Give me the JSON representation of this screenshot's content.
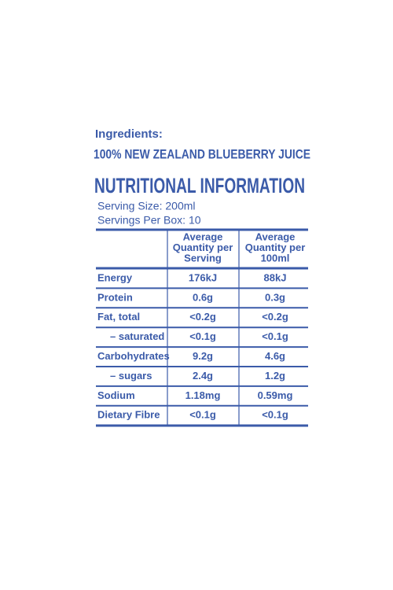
{
  "ingredients": {
    "label": "Ingredients:",
    "text": "100% NEW ZEALAND BLUEBERRY JUICE"
  },
  "nutrition": {
    "title": "NUTRITIONAL INFORMATION",
    "serving_size": "Serving Size: 200ml",
    "servings_per_box": "Servings Per Box: 10",
    "columns": [
      [
        "Average",
        "Quantity per",
        "Serving"
      ],
      [
        "Average",
        "Quantity per",
        "100ml"
      ]
    ],
    "rows": [
      [
        "Energy",
        "176kJ",
        "88kJ"
      ],
      [
        "Protein",
        "0.6g",
        "0.3g"
      ],
      [
        "Fat, total",
        "<0.2g",
        "<0.2g"
      ],
      [
        "– saturated",
        "<0.1g",
        "<0.1g"
      ],
      [
        "Carbohydrates",
        "9.2g",
        "4.6g"
      ],
      [
        "– sugars",
        "2.4g",
        "1.2g"
      ],
      [
        "Sodium",
        "1.18mg",
        "0.59mg"
      ],
      [
        "Dietary Fibre",
        "<0.1g",
        "<0.1g"
      ]
    ]
  }
}
